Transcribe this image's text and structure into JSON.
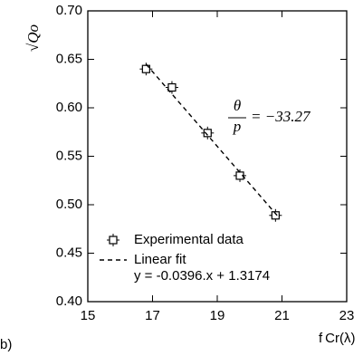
{
  "chart_data": {
    "type": "scatter",
    "panel_label": "b)",
    "x_label": "f Cr(λ)",
    "y_label": "√Qo",
    "xlim": [
      15,
      23
    ],
    "xticks": [
      15,
      17,
      19,
      21,
      23
    ],
    "ylim": [
      0.4,
      0.7
    ],
    "yticks": [
      {
        "value": 0.4,
        "label": "0.40"
      },
      {
        "value": 0.45,
        "label": "0.45"
      },
      {
        "value": 0.5,
        "label": "0.50"
      },
      {
        "value": 0.55,
        "label": "0.55"
      },
      {
        "value": 0.6,
        "label": "0.60"
      },
      {
        "value": 0.65,
        "label": "0.65"
      },
      {
        "value": 0.7,
        "label": "0.70"
      }
    ],
    "series": [
      {
        "name": "Experimental data",
        "color": "#000000",
        "marker": "square",
        "x": [
          16.8,
          17.6,
          18.7,
          19.7,
          20.8
        ],
        "values": [
          0.64,
          0.621,
          0.574,
          0.53,
          0.489
        ]
      },
      {
        "name": "Linear fit",
        "color": "#000000",
        "style": "dashed",
        "x": [
          16.8,
          20.9
        ],
        "values": [
          0.645,
          0.487
        ]
      }
    ],
    "fit_equation": "y = -0.0396.x + 1.3174",
    "annotation": {
      "numerator": "θ",
      "denominator": "p",
      "text": "= −33.27"
    },
    "legend": "lower left"
  }
}
